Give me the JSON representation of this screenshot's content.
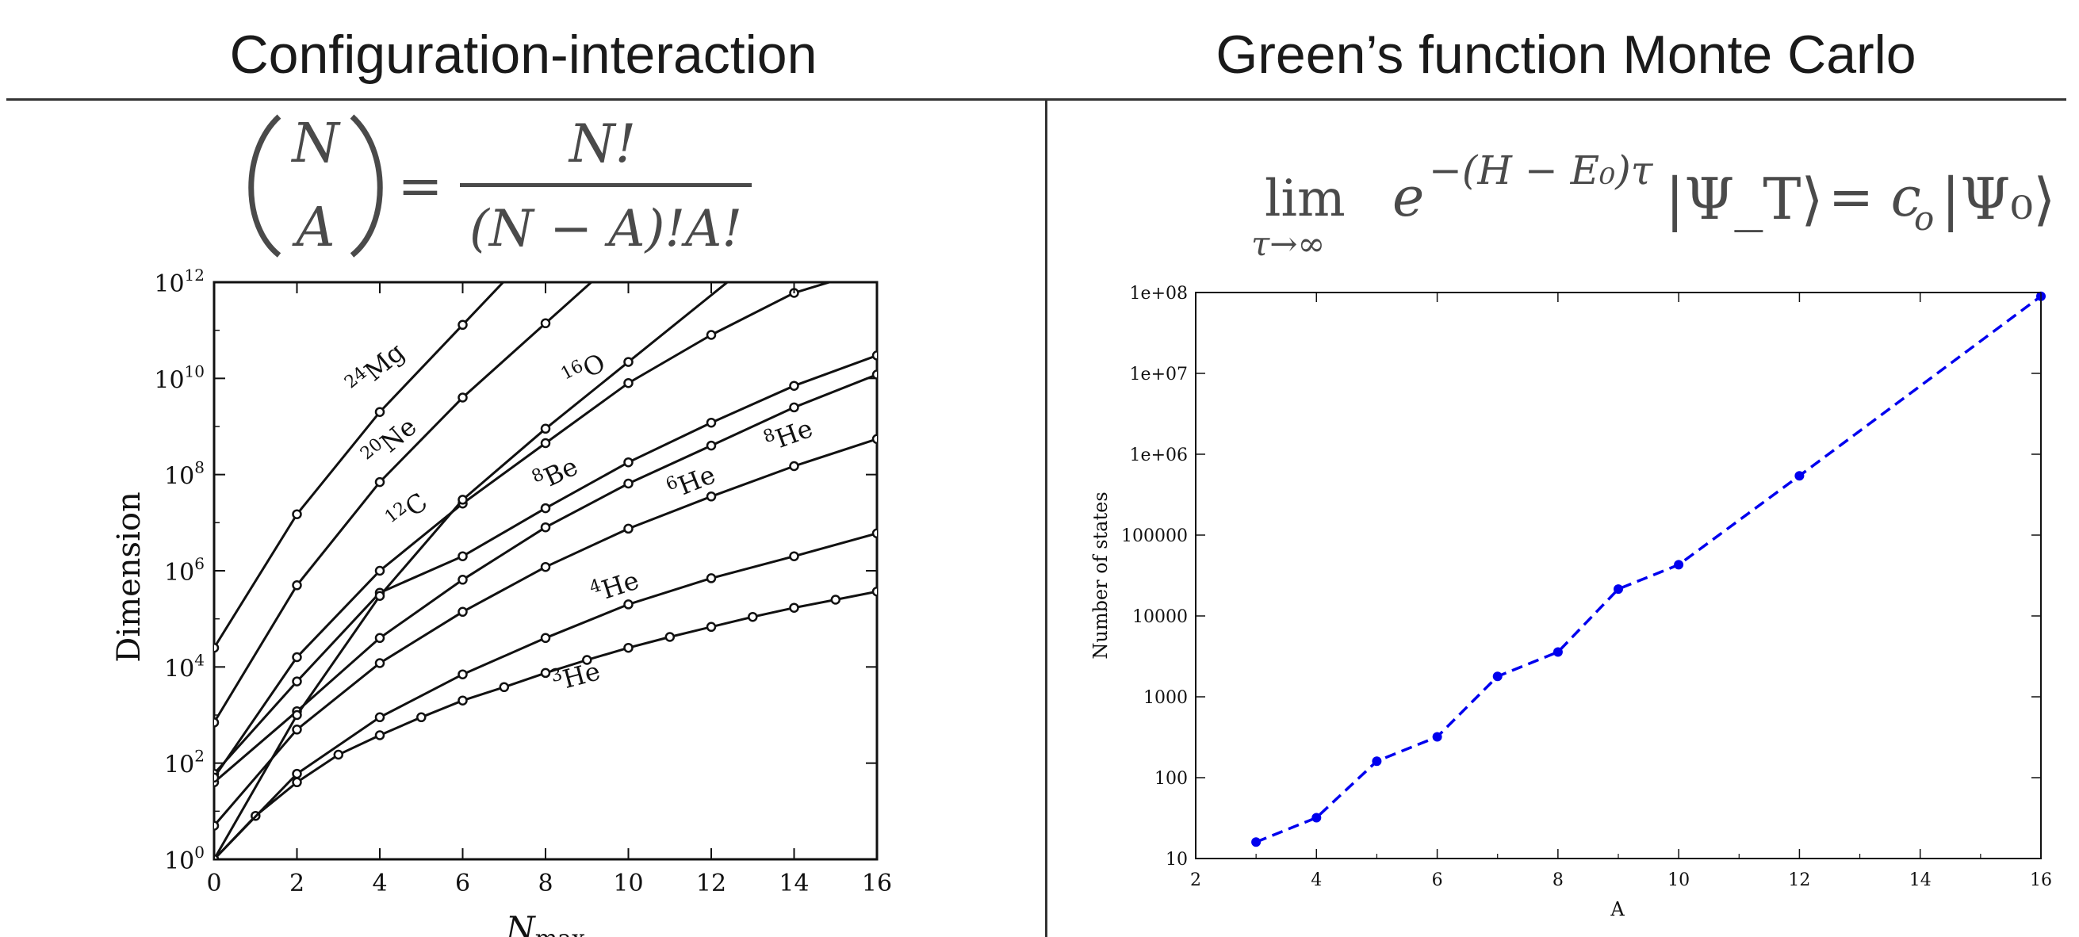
{
  "headings": {
    "left": "Configuration-interaction",
    "right": "Green’s function Monte Carlo"
  },
  "equations": {
    "binomial": {
      "top": "N",
      "bottom": "A",
      "equals": "=",
      "numerator": "N!",
      "denominator": "(N − A)!A!"
    },
    "gfmc": {
      "lim": "lim",
      "sub": "τ→∞",
      "base": "e",
      "exponent": "−(H − E₀)τ",
      "psi_t": "|Ψ_T⟩",
      "equals": "= c",
      "c_sub": "o",
      "psi_0": "|Ψ₀⟩"
    }
  },
  "chart_data": [
    {
      "type": "line",
      "xlabel": "N_max",
      "ylabel": "Dimension",
      "xlim": [
        0,
        16
      ],
      "ylim": [
        1,
        1000000000000.0
      ],
      "log_y": true,
      "xticks": [
        "0",
        "2",
        "4",
        "6",
        "8",
        "10",
        "12",
        "14",
        "16"
      ],
      "yticks": [
        {
          "base": "10",
          "exp": "0"
        },
        {
          "base": "10",
          "exp": "2"
        },
        {
          "base": "10",
          "exp": "4"
        },
        {
          "base": "10",
          "exp": "6"
        },
        {
          "base": "10",
          "exp": "8"
        },
        {
          "base": "10",
          "exp": "10"
        },
        {
          "base": "10",
          "exp": "12"
        }
      ],
      "grid": false,
      "line_color": "#111111",
      "series": [
        {
          "name": "³He",
          "label_mass": "3",
          "label_el": "He",
          "x": [
            0,
            1,
            2,
            3,
            4,
            5,
            6,
            7,
            8,
            9,
            10,
            11,
            12,
            13,
            14,
            15,
            16
          ],
          "y": [
            1,
            8,
            40,
            150,
            380,
            900,
            2000,
            3800,
            7500,
            14000,
            25000,
            42000,
            68000,
            110000,
            170000,
            250000,
            370000
          ]
        },
        {
          "name": "⁴He",
          "label_mass": "4",
          "label_el": "He",
          "x": [
            0,
            2,
            4,
            6,
            8,
            10,
            12,
            14,
            16
          ],
          "y": [
            1,
            60,
            900,
            7000,
            40000,
            200000,
            700000,
            2000000,
            6000000
          ]
        },
        {
          "name": "⁶He",
          "label_mass": "6",
          "label_el": "He",
          "x": [
            0,
            2,
            4,
            6,
            8,
            10,
            12,
            14,
            16
          ],
          "y": [
            5,
            500,
            12000,
            140000,
            1200000,
            7500000,
            35000000,
            150000000,
            550000000
          ]
        },
        {
          "name": "⁸He",
          "label_mass": "8",
          "label_el": "He",
          "x": [
            0,
            2,
            4,
            6,
            8,
            10,
            12,
            14,
            16
          ],
          "y": [
            40,
            1200,
            40000,
            650000,
            8000000,
            65000000,
            400000000,
            2500000000,
            12000000000
          ]
        },
        {
          "name": "⁸Be",
          "label_mass": "8",
          "label_el": "Be",
          "x": [
            0,
            2,
            4,
            6,
            8,
            10,
            12,
            14,
            16
          ],
          "y": [
            60,
            5000,
            350000,
            2000000,
            20000000,
            180000000,
            1200000000,
            7000000000,
            30000000000
          ]
        },
        {
          "name": "¹²C",
          "label_mass": "12",
          "label_el": "C",
          "x": [
            0,
            2,
            4,
            6,
            8,
            10,
            12,
            14,
            16
          ],
          "y": [
            50,
            16000,
            1000000,
            25000000,
            450000000,
            8000000000,
            80000000000,
            600000000000,
            2000000000000
          ]
        },
        {
          "name": "¹⁶O",
          "label_mass": "16",
          "label_el": "O",
          "x": [
            0,
            2,
            4,
            6,
            8,
            10
          ],
          "y": [
            1,
            1000,
            300000,
            30000000,
            900000000,
            22000000000
          ]
        },
        {
          "name": "²⁰Ne",
          "label_mass": "20",
          "label_el": "Ne",
          "x": [
            0,
            2,
            4,
            6,
            8
          ],
          "y": [
            700,
            500000,
            70000000,
            4000000000,
            140000000000
          ]
        },
        {
          "name": "²⁴Mg",
          "label_mass": "24",
          "label_el": "Mg",
          "x": [
            0,
            2,
            4,
            6
          ],
          "y": [
            25000,
            15000000,
            2000000000,
            130000000000
          ]
        }
      ]
    },
    {
      "type": "line",
      "xlabel": "A",
      "ylabel": "Number of states",
      "xlim": [
        2,
        16
      ],
      "ylim": [
        10,
        100000000
      ],
      "log_y": true,
      "xticks": [
        "2",
        "4",
        "6",
        "8",
        "10",
        "12",
        "14",
        "16"
      ],
      "yticks": [
        "10",
        "100",
        "1000",
        "10000",
        "100000",
        "1e+06",
        "1e+07",
        "1e+08"
      ],
      "grid": false,
      "line_color": "#0000ee",
      "series": [
        {
          "x": [
            3,
            4,
            5,
            6,
            7,
            8,
            9,
            10,
            12,
            16
          ],
          "y": [
            16,
            32,
            160,
            320,
            1792,
            3584,
            21504,
            43008,
            540672,
            90000000
          ]
        }
      ]
    }
  ]
}
